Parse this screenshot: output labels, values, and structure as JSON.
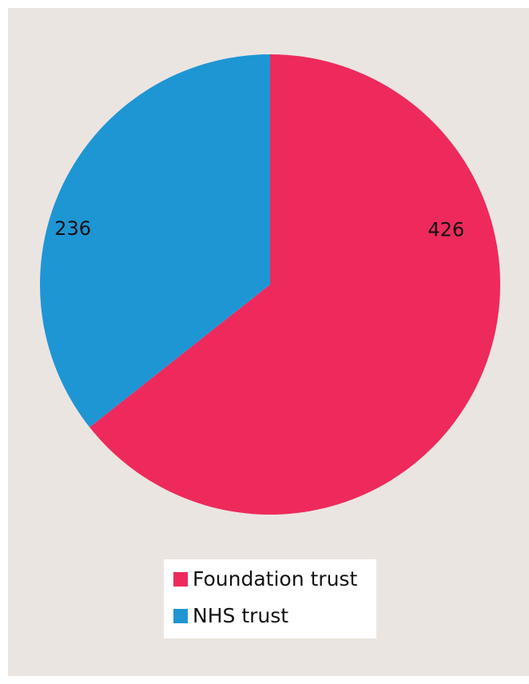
{
  "chart_data": {
    "type": "pie",
    "title": "",
    "slices": [
      {
        "label": "Foundation trust",
        "value": 426,
        "color": "#ee2a5c"
      },
      {
        "label": "NHS trust",
        "value": 236,
        "color": "#1e96d4"
      }
    ],
    "data_labels": [
      "426",
      "236"
    ],
    "legend": {
      "placement": "bottom-center",
      "entries": [
        "Foundation trust",
        "NHS trust"
      ]
    },
    "start_angle": "12 o'clock",
    "direction": "clockwise"
  },
  "colors": {
    "panel_background": "#ebe5e1",
    "legend_background": "#ffffff"
  }
}
